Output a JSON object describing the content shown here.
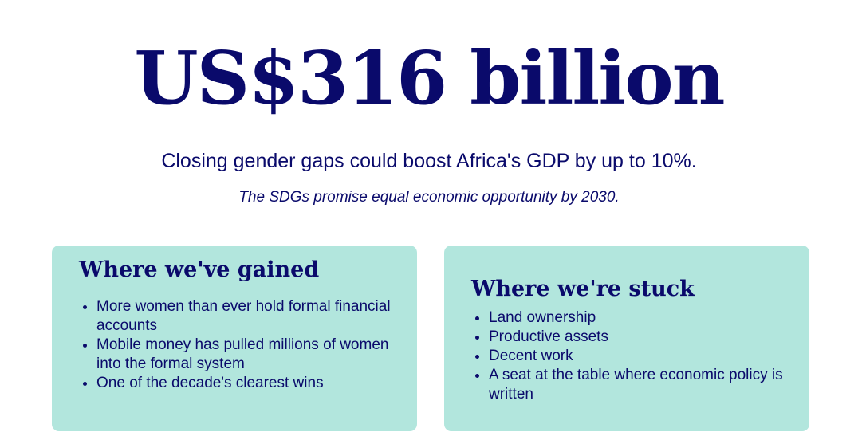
{
  "headline": "US$316 billion",
  "subline": "Closing gender gaps could boost Africa's GDP by up to 10%.",
  "note": "The SDGs promise equal economic opportunity by 2030.",
  "cards": [
    {
      "title": "Where we've gained",
      "items": [
        "More women than ever hold formal financial accounts",
        "Mobile money has pulled millions of women into the formal system",
        "One of the decade's clearest wins"
      ]
    },
    {
      "title": "Where we're stuck",
      "items": [
        "Land ownership",
        "Productive assets",
        "Decent work",
        "A seat at the table where economic policy is written"
      ]
    }
  ],
  "colors": {
    "text": "#0a0a6b",
    "card_background": "#b2e6dd",
    "page_background": "#ffffff"
  }
}
